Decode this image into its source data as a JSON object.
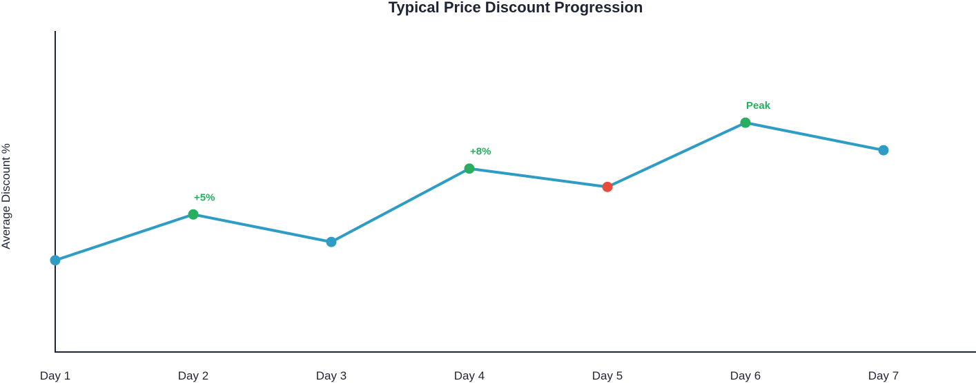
{
  "chart_data": {
    "type": "line",
    "title": "Typical Price Discount Progression",
    "xlabel": "",
    "ylabel": "Average Discount %",
    "categories": [
      "Day 1",
      "Day 2",
      "Day 3",
      "Day 4",
      "Day 5",
      "Day 6",
      "Day 7"
    ],
    "series": [
      {
        "values": [
          5,
          10,
          7,
          15,
          13,
          20,
          17
        ]
      }
    ],
    "point_colors": [
      "#2e9cc4",
      "#27ae60",
      "#2e9cc4",
      "#27ae60",
      "#e74c3c",
      "#27ae60",
      "#2e9cc4"
    ],
    "annotations": [
      {
        "index": 1,
        "text": "+5%"
      },
      {
        "index": 3,
        "text": "+8%"
      },
      {
        "index": 5,
        "text": "Peak"
      }
    ],
    "ylim": [
      -5,
      30
    ],
    "y_ticks_shown": false,
    "grid": false,
    "colors": {
      "line": "#2e9cc4",
      "axis": "#1f2433",
      "annotation": "#27ae60"
    }
  }
}
